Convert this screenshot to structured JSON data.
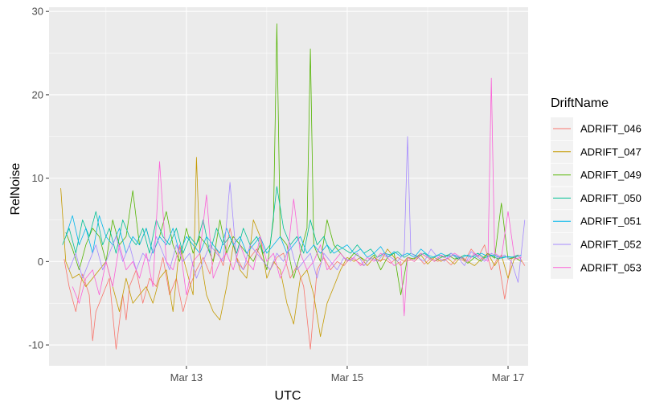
{
  "chart_data": {
    "type": "line",
    "title": "",
    "xlabel": "UTC",
    "ylabel": "RelNoise",
    "xlim": [
      "2020-03-11T07:00",
      "2020-03-17T06:00"
    ],
    "ylim": [
      -12.5,
      30.5
    ],
    "x_ticks": [
      {
        "x": "2020-03-13T00:00",
        "label": "Mar 13"
      },
      {
        "x": "2020-03-15T00:00",
        "label": "Mar 15"
      },
      {
        "x": "2020-03-17T00:00",
        "label": "Mar 17"
      }
    ],
    "y_ticks": [
      -10,
      0,
      10,
      20,
      30
    ],
    "y_tick_labels": [
      "-10",
      "0",
      "10",
      "20",
      "30"
    ],
    "grid": true,
    "panel_background": "#ebebeb",
    "grid_color": "#ffffff",
    "legend": {
      "title": "DriftName",
      "position": "right"
    },
    "x_units": "hours since 2020-03-11T07:00",
    "series": [
      {
        "name": "ADRIFT_046",
        "color": "#F8766D",
        "x": [
          4.5,
          6,
          8,
          10,
          12,
          13,
          14,
          16,
          18,
          20,
          22,
          23,
          24,
          26,
          28,
          30,
          32,
          34,
          36,
          38,
          40,
          42,
          44,
          46,
          48,
          50,
          52,
          54,
          56,
          58,
          60,
          62,
          64,
          66,
          68,
          70,
          72,
          74,
          76,
          78,
          80,
          82,
          84,
          86,
          88,
          90,
          92,
          94,
          96,
          98,
          100,
          102,
          104,
          106,
          108,
          110,
          112,
          114,
          116,
          118,
          120,
          122,
          124,
          126,
          128,
          130,
          132,
          134,
          136,
          138,
          140,
          142
        ],
        "y": [
          0.3,
          -3,
          -6,
          -1.5,
          -4,
          -9.5,
          -6,
          -4,
          -2,
          -10.5,
          -4,
          -7,
          -3,
          -1,
          -5,
          -2,
          -3,
          0.5,
          -4,
          -2,
          -6,
          -3,
          -1,
          0.5,
          -1.5,
          1.5,
          -0.5,
          4,
          0.5,
          -1,
          0.5,
          1.5,
          0,
          -1,
          0.5,
          1,
          -2,
          -0.5,
          -3,
          -10.5,
          -1,
          0.5,
          -1,
          0,
          -0.5,
          0.5,
          0,
          -0.5,
          0.5,
          0,
          0.3,
          -0.2,
          0.5,
          0,
          0.2,
          0.6,
          -0.3,
          0.4,
          0,
          0.3,
          -0.4,
          0.5,
          0,
          1.5,
          0.5,
          2,
          -1,
          0.5,
          -4.5,
          0.3,
          0.8,
          -0.5
        ]
      },
      {
        "name": "ADRIFT_047",
        "color": "#C49A00",
        "x": [
          3.5,
          5,
          7,
          9,
          11,
          13,
          15,
          17,
          19,
          21,
          23,
          25,
          27,
          29,
          31,
          33,
          35,
          37,
          39,
          41,
          43,
          44,
          45,
          47,
          49,
          51,
          53,
          55,
          57,
          59,
          61,
          63,
          65,
          67,
          69,
          71,
          73,
          75,
          77,
          79,
          81,
          83,
          85,
          87,
          89,
          91,
          93,
          95,
          97,
          99,
          101,
          103,
          105,
          107,
          109,
          111,
          113,
          115,
          117,
          119,
          121,
          123,
          125,
          127,
          129,
          131,
          133,
          135,
          137,
          139,
          141
        ],
        "y": [
          8.8,
          0,
          -2,
          -1.5,
          -3,
          -2,
          -1,
          0,
          -3,
          -6,
          -2,
          -5,
          -4,
          -3,
          -5,
          -2,
          -1,
          -6,
          2,
          -1,
          -4,
          12.5,
          1,
          -4,
          -6,
          -7,
          -3,
          2,
          -1,
          -2,
          5,
          3,
          -2,
          0,
          -1,
          -5,
          -7.5,
          -2,
          -1,
          -4,
          -9,
          -5,
          -3,
          -1,
          0.5,
          0,
          0.5,
          -0.5,
          0.5,
          0,
          1.5,
          0.5,
          -0.5,
          0.5,
          0,
          0.8,
          -0.3,
          0.5,
          0,
          0.4,
          -0.3,
          0.6,
          0,
          -0.5,
          0.3,
          1,
          -0.5,
          0.8,
          -2,
          0.5,
          0
        ]
      },
      {
        "name": "ADRIFT_049",
        "color": "#53B400",
        "x": [
          5,
          7,
          9,
          11,
          13,
          15,
          17,
          19,
          21,
          23,
          25,
          27,
          29,
          31,
          33,
          35,
          37,
          39,
          41,
          43,
          45,
          47,
          49,
          51,
          53,
          55,
          57,
          59,
          61,
          63,
          65,
          67,
          68,
          69,
          71,
          73,
          75,
          77,
          78,
          79,
          81,
          83,
          85,
          87,
          89,
          91,
          93,
          95,
          97,
          99,
          101,
          103,
          105,
          107,
          109,
          111,
          113,
          115,
          117,
          119,
          121,
          123,
          125,
          127,
          129,
          131,
          133,
          135,
          137,
          139,
          141
        ],
        "y": [
          3.5,
          1.5,
          -1,
          2,
          4,
          3,
          0,
          5,
          2,
          3,
          8.5,
          2,
          4,
          1,
          3,
          6,
          2,
          0,
          4,
          1,
          3,
          2,
          0,
          5,
          1,
          3,
          2,
          1,
          0,
          2,
          -1,
          5,
          28.5,
          3,
          2,
          -2,
          1,
          4,
          25.5,
          2,
          0,
          5,
          2,
          1,
          0,
          1,
          0.5,
          0,
          0.8,
          -1,
          0.5,
          1,
          -4,
          0.5,
          0.3,
          1,
          0.5,
          0,
          0.5,
          0.8,
          0.3,
          0.5,
          -0.2,
          0.5,
          0,
          1,
          0.4,
          7,
          0.3,
          0.5,
          0
        ]
      },
      {
        "name": "ADRIFT_050",
        "color": "#00C094",
        "x": [
          4,
          6,
          8,
          10,
          12,
          14,
          16,
          18,
          20,
          22,
          24,
          26,
          28,
          30,
          32,
          34,
          36,
          38,
          40,
          42,
          44,
          46,
          48,
          50,
          52,
          54,
          56,
          58,
          60,
          62,
          64,
          66,
          68,
          70,
          72,
          74,
          76,
          78,
          80,
          82,
          84,
          86,
          88,
          90,
          92,
          94,
          96,
          98,
          100,
          102,
          104,
          106,
          108,
          110,
          112,
          114,
          116,
          118,
          120,
          122,
          124,
          126,
          128,
          130,
          132,
          134,
          136,
          138,
          140
        ],
        "y": [
          2,
          4,
          1,
          5,
          3,
          6,
          2,
          4,
          1,
          5,
          3,
          2,
          4,
          1,
          5,
          3,
          2,
          4,
          1,
          3,
          2,
          5,
          1,
          4,
          2,
          3,
          1,
          4,
          2,
          3,
          1,
          2,
          9,
          4,
          2,
          3,
          1,
          5,
          2,
          3,
          1,
          2,
          1.5,
          1,
          2,
          1,
          1.5,
          0.5,
          1,
          0.8,
          1.2,
          0.5,
          1,
          0.6,
          1,
          0.4,
          0.8,
          0.5,
          1,
          0.3,
          0.8,
          0.5,
          1,
          0.4,
          0.8,
          0.3,
          0.6,
          0.5,
          0.8
        ]
      },
      {
        "name": "ADRIFT_051",
        "color": "#00B6EB",
        "x": [
          5,
          7,
          9,
          11,
          13,
          15,
          17,
          19,
          21,
          23,
          25,
          27,
          29,
          31,
          33,
          35,
          37,
          39,
          41,
          43,
          45,
          47,
          49,
          51,
          53,
          55,
          57,
          59,
          61,
          63,
          65,
          67,
          69,
          71,
          73,
          75,
          77,
          79,
          81,
          83,
          85,
          87,
          89,
          91,
          93,
          95,
          97,
          99,
          101,
          103,
          105,
          107,
          109,
          111,
          113,
          115,
          117,
          119,
          121,
          123,
          125,
          127,
          129,
          131,
          133,
          135,
          137,
          139,
          141
        ],
        "y": [
          3,
          5.5,
          2,
          4,
          1,
          5.5,
          3,
          2,
          4,
          1,
          3,
          2,
          4,
          1,
          3,
          2,
          4,
          1,
          3,
          2,
          1,
          3,
          2,
          1,
          4,
          2,
          3,
          1,
          2,
          3,
          1,
          2,
          3,
          1,
          2,
          3,
          1,
          2,
          1,
          2,
          1,
          1.5,
          2,
          1,
          1.5,
          0.5,
          1,
          1.8,
          0.5,
          1.2,
          0.6,
          1,
          0.5,
          1.5,
          0.8,
          0.5,
          1,
          0.6,
          0.8,
          0.4,
          0.8,
          0.5,
          1,
          0.6,
          0.8,
          0.4,
          0.6,
          0.5,
          0.8
        ]
      },
      {
        "name": "ADRIFT_052",
        "color": "#A58AFF",
        "x": [
          6,
          8,
          10,
          12,
          14,
          16,
          18,
          20,
          22,
          24,
          26,
          28,
          30,
          32,
          34,
          36,
          38,
          40,
          42,
          44,
          46,
          48,
          50,
          52,
          54,
          56,
          58,
          60,
          62,
          64,
          66,
          68,
          70,
          72,
          74,
          76,
          78,
          80,
          82,
          84,
          86,
          88,
          90,
          92,
          94,
          96,
          98,
          100,
          102,
          104,
          106,
          107,
          108,
          110,
          112,
          114,
          116,
          118,
          120,
          122,
          124,
          126,
          128,
          130,
          132,
          134,
          136,
          138,
          140,
          142
        ],
        "y": [
          -1,
          1,
          -2,
          0,
          2,
          -1,
          1,
          3,
          0,
          2,
          -1,
          1,
          0,
          3,
          1,
          -1,
          2,
          0,
          1,
          -2,
          0,
          2,
          1,
          0,
          9.5,
          0,
          -1,
          2,
          1,
          0,
          -1,
          1,
          0,
          2,
          -1,
          0,
          1,
          -2,
          1,
          0,
          -1,
          0.5,
          0,
          1,
          -0.5,
          0.5,
          0,
          1,
          0.5,
          0,
          1,
          15,
          1,
          0.5,
          0,
          1.5,
          0.5,
          0,
          1,
          0.5,
          -0.5,
          1.2,
          0.5,
          0,
          1,
          0.5,
          0.8,
          0,
          -2.5,
          5
        ]
      },
      {
        "name": "ADRIFT_053",
        "color": "#FB61D7",
        "x": [
          7,
          9,
          11,
          13,
          15,
          17,
          19,
          21,
          23,
          25,
          27,
          29,
          31,
          33,
          35,
          37,
          39,
          41,
          43,
          45,
          47,
          49,
          51,
          53,
          55,
          57,
          59,
          61,
          63,
          65,
          67,
          69,
          71,
          73,
          75,
          77,
          79,
          81,
          83,
          85,
          87,
          89,
          91,
          93,
          95,
          97,
          99,
          101,
          103,
          105,
          106,
          107,
          109,
          111,
          113,
          115,
          117,
          119,
          121,
          123,
          125,
          127,
          129,
          131,
          132,
          133,
          135,
          137,
          139,
          141
        ],
        "y": [
          -3,
          -5,
          -2,
          -1,
          -4,
          0,
          -3,
          2,
          -1,
          0,
          -2,
          1,
          -3,
          12,
          0,
          -1,
          2,
          -4,
          0,
          1,
          8,
          -2,
          0,
          1,
          -1,
          2,
          0,
          -1,
          3,
          0,
          1,
          -2,
          0,
          7.5,
          1,
          -1,
          0,
          2,
          -1,
          0,
          1,
          0,
          0.5,
          -0.5,
          0.5,
          0,
          1,
          0.5,
          -0.5,
          0,
          -6.5,
          0.5,
          0,
          1,
          0.5,
          0,
          0.8,
          0.3,
          1,
          0.5,
          0,
          1,
          0.5,
          0,
          22,
          1,
          0.5,
          6,
          0.3,
          0.5
        ]
      }
    ]
  }
}
